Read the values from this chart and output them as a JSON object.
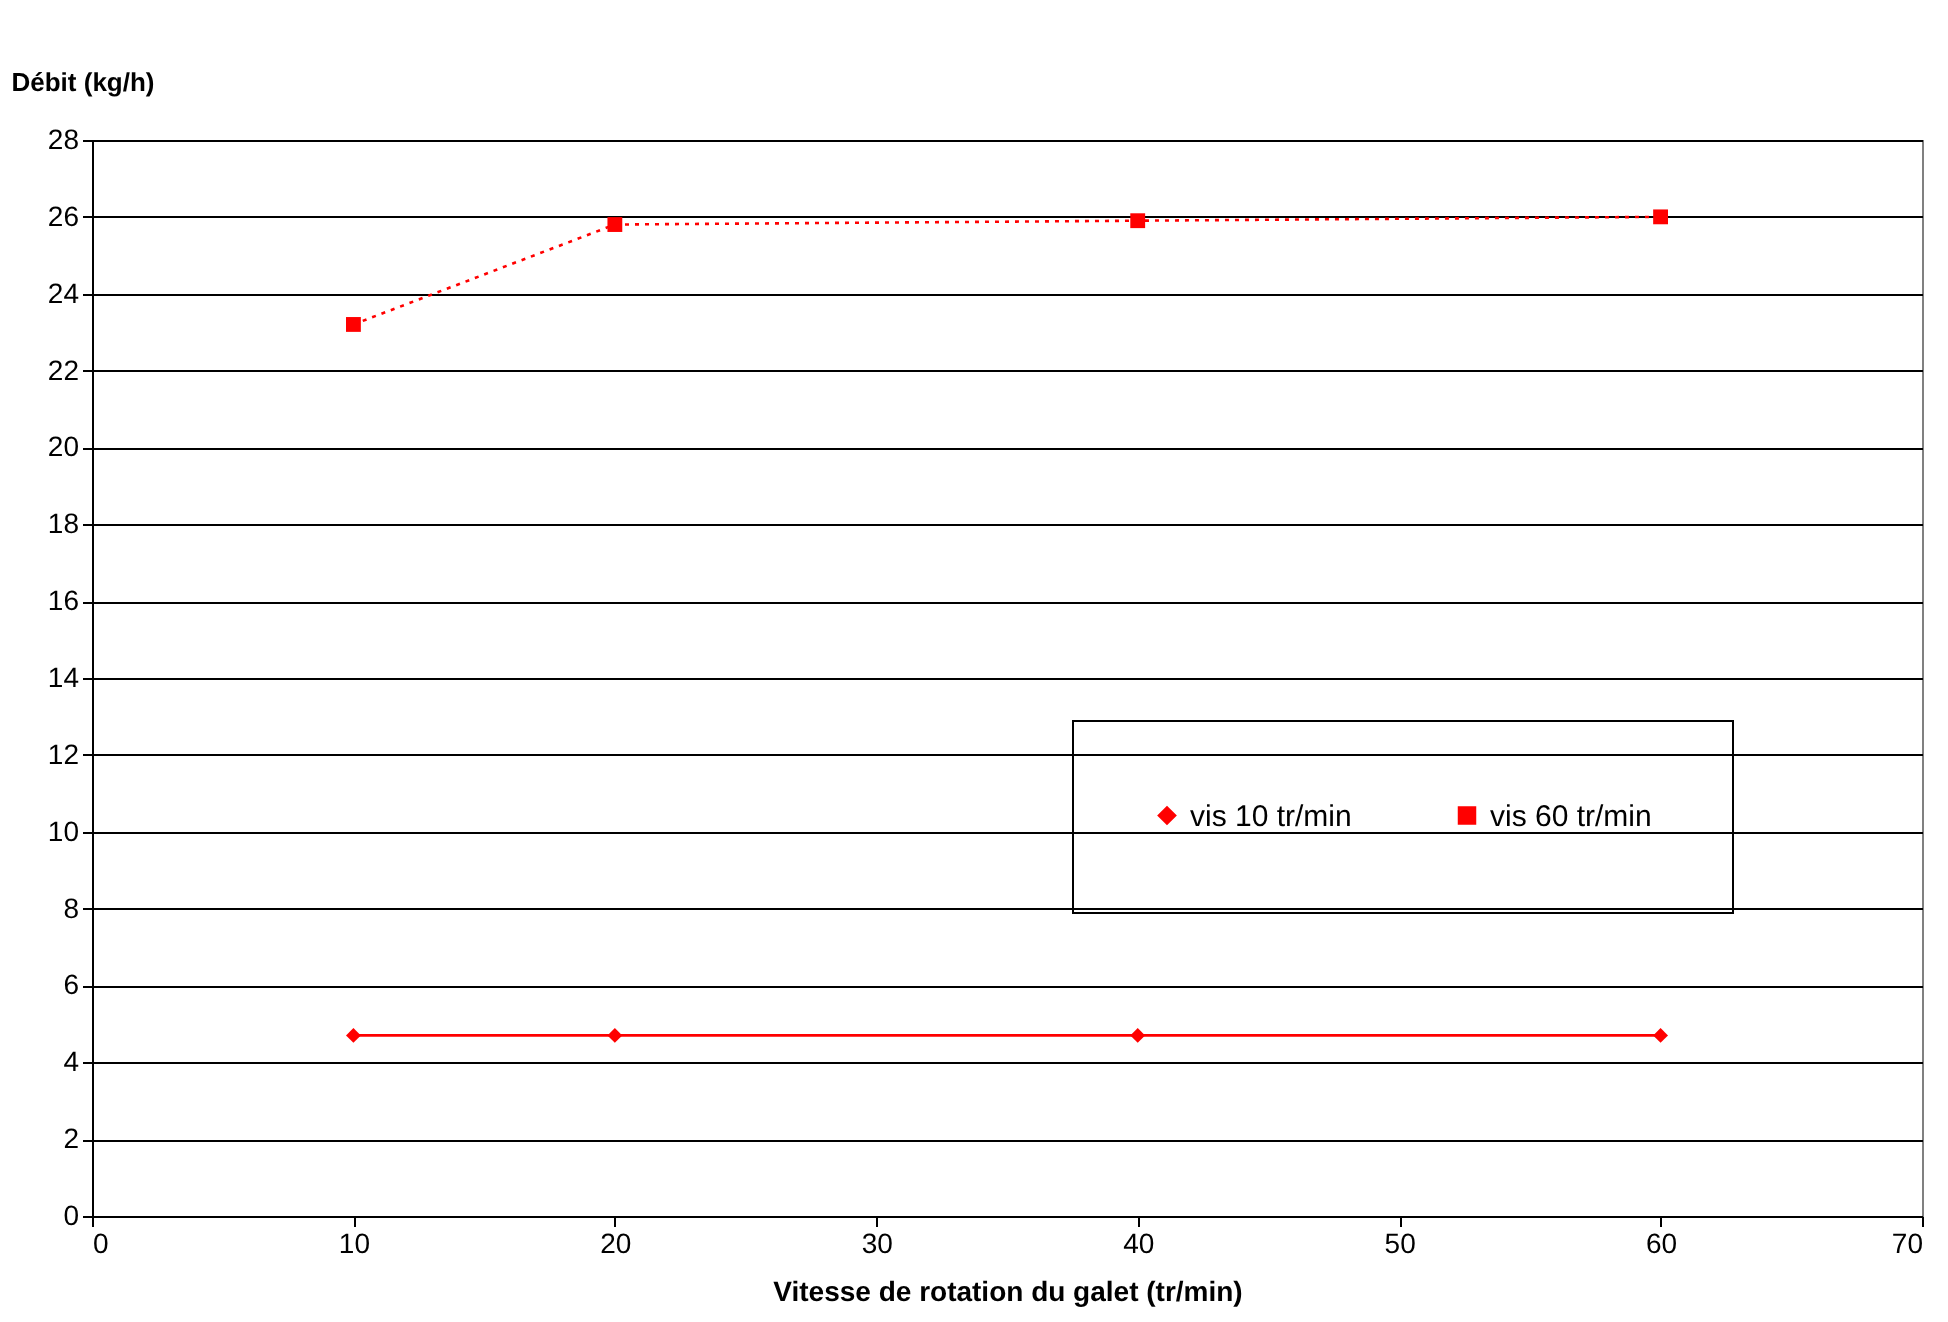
{
  "chart_data": {
    "type": "line",
    "xlabel": "Vitesse de rotation du galet (tr/min)",
    "ylabel": "Débit (kg/h)",
    "xlim": [
      0,
      70
    ],
    "xticks": [
      0,
      10,
      20,
      30,
      40,
      50,
      60,
      70
    ],
    "ylim": [
      0,
      28
    ],
    "yticks": [
      0,
      2,
      4,
      6,
      8,
      10,
      12,
      14,
      16,
      18,
      20,
      22,
      24,
      26,
      28
    ],
    "grid": "y",
    "legend": "right",
    "series": [
      {
        "name": "vis 10 tr/min",
        "color": "#ff0000",
        "marker": "diamond",
        "line_style": "solid",
        "x": [
          10,
          20,
          40,
          60
        ],
        "values": [
          4.7,
          4.7,
          4.7,
          4.7
        ]
      },
      {
        "name": "vis 60 tr/min",
        "color": "#ff0000",
        "marker": "square",
        "line_style": "dotted",
        "x": [
          10,
          20,
          40,
          60
        ],
        "values": [
          23.2,
          25.8,
          25.9,
          26.0
        ]
      }
    ]
  }
}
